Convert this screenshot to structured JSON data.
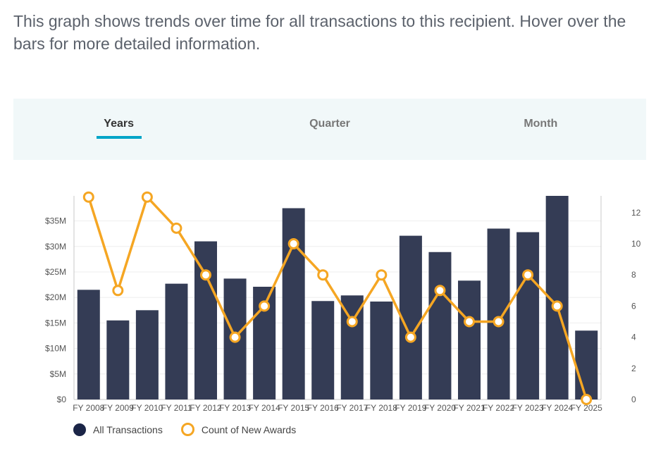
{
  "intro": "This graph shows trends over time for all transactions to this recipient. Hover over the bars for more detailed information.",
  "tabs": [
    {
      "label": "Years",
      "active": true
    },
    {
      "label": "Quarter",
      "active": false
    },
    {
      "label": "Month",
      "active": false
    }
  ],
  "legend": {
    "bars_label": "All Transactions",
    "line_label": "Count of New Awards"
  },
  "colors": {
    "bar": "#343c55",
    "line": "#f5a623",
    "accent": "#00a5c8"
  },
  "chart_data": {
    "type": "bar",
    "categories": [
      "FY 2008",
      "FY 2009",
      "FY 2010",
      "FY 2011",
      "FY 2012",
      "FY 2013",
      "FY 2014",
      "FY 2015",
      "FY 2016",
      "FY 2017",
      "FY 2018",
      "FY 2019",
      "FY 2020",
      "FY 2021",
      "FY 2022",
      "FY 2023",
      "FY 2024",
      "FY 2025"
    ],
    "series": [
      {
        "name": "All Transactions",
        "axis": "left",
        "kind": "bar",
        "values": [
          21.5,
          15.5,
          17.5,
          22.7,
          31.0,
          23.7,
          22.1,
          37.5,
          19.3,
          20.4,
          19.2,
          32.1,
          28.9,
          23.3,
          33.5,
          32.8,
          40.0,
          13.5
        ]
      },
      {
        "name": "Count of New Awards",
        "axis": "right",
        "kind": "line",
        "values": [
          13,
          7,
          13,
          11,
          8,
          4,
          6,
          10,
          8,
          5,
          8,
          4,
          7,
          5,
          5,
          8,
          6,
          0
        ]
      }
    ],
    "left_axis": {
      "ticks": [
        "$0",
        "$5M",
        "$10M",
        "$15M",
        "$20M",
        "$25M",
        "$30M",
        "$35M"
      ],
      "tick_values": [
        0,
        5,
        10,
        15,
        20,
        25,
        30,
        35
      ],
      "ylim": [
        0,
        40
      ]
    },
    "right_axis": {
      "ticks": [
        "0",
        "2",
        "4",
        "6",
        "8",
        "10",
        "12"
      ],
      "tick_values": [
        0,
        2,
        4,
        6,
        8,
        10,
        12
      ],
      "ylim": [
        0,
        13
      ]
    },
    "grid": true
  }
}
